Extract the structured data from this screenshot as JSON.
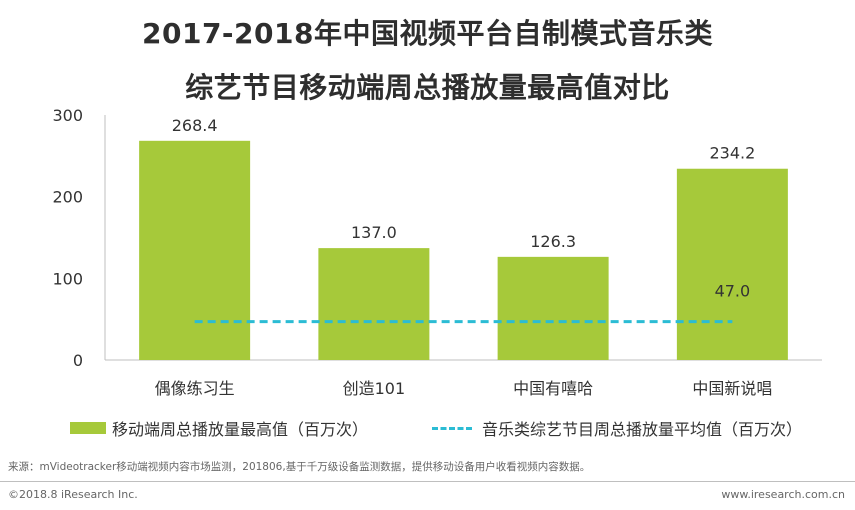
{
  "chart_data": {
    "type": "bar",
    "title": "2017-2018年中国视频平台自制模式音乐类",
    "subtitle": "综艺节目移动端周总播放量最高值对比",
    "categories": [
      "偶像练习生",
      "创造101",
      "中国有嘻哈",
      "中国新说唱"
    ],
    "series": [
      {
        "name": "移动端周总播放量最高值（百万次）",
        "values": [
          268.4,
          137.0,
          126.3,
          234.2
        ],
        "color": "#a6c93a"
      }
    ],
    "data_labels": [
      "268.4",
      "137.0",
      "126.3",
      "234.2"
    ],
    "reference_line": {
      "name": "音乐类综艺节目周总播放量平均值（百万次）",
      "value": 47.0,
      "label": "47.0",
      "color": "#2bbcd4",
      "style": "dashed"
    },
    "yticks": [
      "0",
      "100",
      "200",
      "300"
    ],
    "ylim": [
      0,
      300
    ],
    "xlabel": "",
    "ylabel": "",
    "grid": false,
    "legend": "bottom"
  },
  "footnote": "来源：mVideotracker移动端视频内容市场监测，201806,基于千万级设备监测数据，提供移动设备用户收看视频内容数据。",
  "footer": {
    "left": "©2018.8 iResearch Inc.",
    "right": "www.iresearch.com.cn"
  }
}
